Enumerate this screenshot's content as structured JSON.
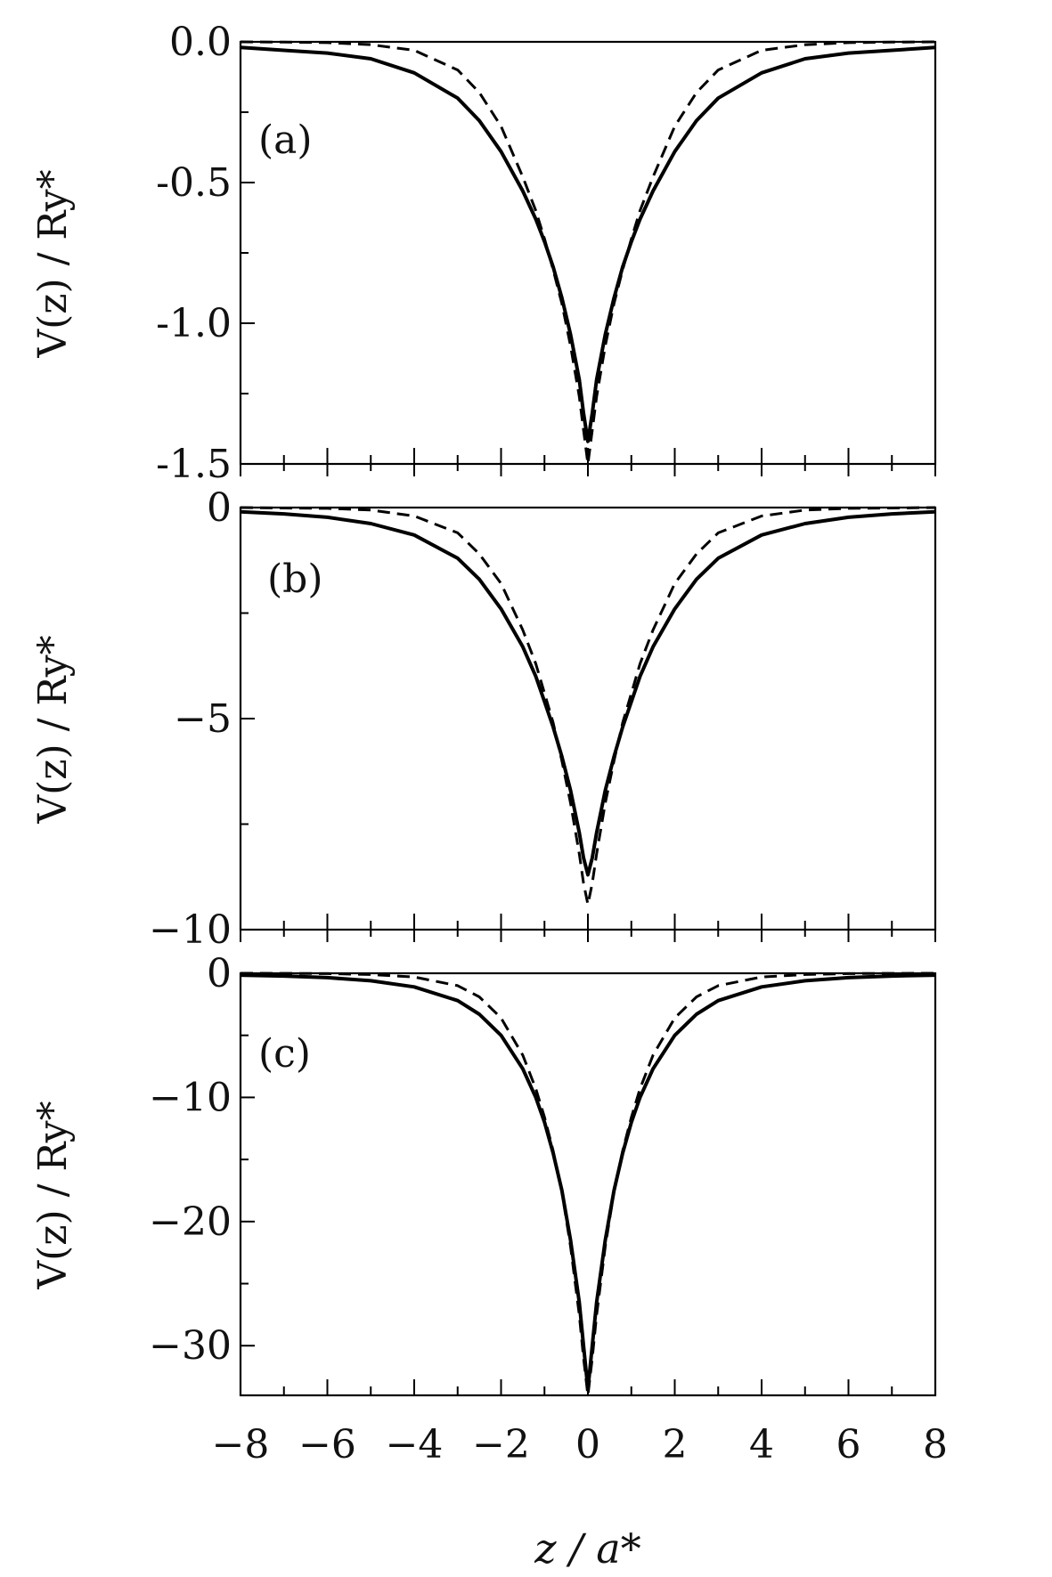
{
  "chart_data": [
    {
      "type": "line",
      "panel_label": "(a)",
      "ylabel": "V(z) / Ry*",
      "xlim": [
        -8,
        8
      ],
      "ylim": [
        -1.5,
        0.0
      ],
      "yticks": [
        0.0,
        -0.5,
        -1.0,
        -1.5
      ],
      "ytick_labels": [
        "0.0",
        "-0.5",
        "-1.0",
        "-1.5"
      ],
      "yminor": [
        -0.25,
        -0.75,
        -1.25
      ],
      "series": [
        {
          "style": "solid",
          "x": [
            -8,
            -7,
            -6,
            -5,
            -4,
            -3,
            -2.5,
            -2,
            -1.5,
            -1.2,
            -1,
            -0.8,
            -0.6,
            -0.4,
            -0.2,
            -0.1,
            0,
            0.1,
            0.2,
            0.4,
            0.6,
            0.8,
            1,
            1.2,
            1.5,
            2,
            2.5,
            3,
            4,
            5,
            6,
            7,
            8
          ],
          "y": [
            -0.02,
            -0.03,
            -0.04,
            -0.06,
            -0.11,
            -0.2,
            -0.28,
            -0.39,
            -0.53,
            -0.63,
            -0.71,
            -0.8,
            -0.91,
            -1.04,
            -1.2,
            -1.32,
            -1.42,
            -1.32,
            -1.2,
            -1.04,
            -0.91,
            -0.8,
            -0.71,
            -0.63,
            -0.53,
            -0.39,
            -0.28,
            -0.2,
            -0.11,
            -0.06,
            -0.04,
            -0.03,
            -0.02
          ]
        },
        {
          "style": "dashed",
          "x": [
            -8,
            -7,
            -6,
            -5,
            -4,
            -3,
            -2.5,
            -2,
            -1.5,
            -1.2,
            -1,
            -0.8,
            -0.6,
            -0.4,
            -0.2,
            -0.1,
            0,
            0.1,
            0.2,
            0.4,
            0.6,
            0.8,
            1,
            1.2,
            1.5,
            2,
            2.5,
            3,
            4,
            5,
            6,
            7,
            8
          ],
          "y": [
            0.0,
            -0.001,
            -0.003,
            -0.01,
            -0.03,
            -0.1,
            -0.18,
            -0.3,
            -0.48,
            -0.6,
            -0.7,
            -0.81,
            -0.93,
            -1.08,
            -1.26,
            -1.38,
            -1.5,
            -1.38,
            -1.26,
            -1.08,
            -0.93,
            -0.81,
            -0.7,
            -0.6,
            -0.48,
            -0.3,
            -0.18,
            -0.1,
            -0.03,
            -0.01,
            -0.003,
            -0.001,
            0.0
          ]
        }
      ]
    },
    {
      "type": "line",
      "panel_label": "(b)",
      "ylabel": "V(z) / Ry*",
      "xlim": [
        -8,
        8
      ],
      "ylim": [
        -10,
        0
      ],
      "yticks": [
        0,
        -5,
        -10
      ],
      "ytick_labels": [
        "0",
        "−5",
        "−10"
      ],
      "yminor": [
        -2.5,
        -7.5
      ],
      "series": [
        {
          "style": "solid",
          "x": [
            -8,
            -7,
            -6,
            -5,
            -4,
            -3,
            -2.5,
            -2,
            -1.5,
            -1.2,
            -1,
            -0.8,
            -0.6,
            -0.4,
            -0.2,
            -0.1,
            0,
            0.1,
            0.2,
            0.4,
            0.6,
            0.8,
            1,
            1.2,
            1.5,
            2,
            2.5,
            3,
            4,
            5,
            6,
            7,
            8
          ],
          "y": [
            -0.1,
            -0.15,
            -0.23,
            -0.38,
            -0.65,
            -1.2,
            -1.7,
            -2.4,
            -3.3,
            -4.0,
            -4.6,
            -5.2,
            -5.9,
            -6.7,
            -7.7,
            -8.3,
            -8.7,
            -8.3,
            -7.7,
            -6.7,
            -5.9,
            -5.2,
            -4.6,
            -4.0,
            -3.3,
            -2.4,
            -1.7,
            -1.2,
            -0.65,
            -0.38,
            -0.23,
            -0.15,
            -0.1
          ]
        },
        {
          "style": "dashed",
          "x": [
            -8,
            -7,
            -6,
            -5,
            -4,
            -3,
            -2.5,
            -2,
            -1.5,
            -1.2,
            -1,
            -0.8,
            -0.6,
            -0.4,
            -0.2,
            -0.1,
            0,
            0.1,
            0.2,
            0.4,
            0.6,
            0.8,
            1,
            1.2,
            1.5,
            2,
            2.5,
            3,
            4,
            5,
            6,
            7,
            8
          ],
          "y": [
            0.0,
            -0.01,
            -0.02,
            -0.06,
            -0.2,
            -0.6,
            -1.1,
            -1.8,
            -2.9,
            -3.7,
            -4.4,
            -5.1,
            -6.0,
            -7.0,
            -8.2,
            -8.9,
            -9.4,
            -8.9,
            -8.2,
            -7.0,
            -6.0,
            -5.1,
            -4.4,
            -3.7,
            -2.9,
            -1.8,
            -1.1,
            -0.6,
            -0.2,
            -0.06,
            -0.02,
            -0.01,
            0.0
          ]
        }
      ]
    },
    {
      "type": "line",
      "panel_label": "(c)",
      "ylabel": "V(z) / Ry*",
      "xlim": [
        -8,
        8
      ],
      "ylim": [
        -34,
        0
      ],
      "yticks": [
        0,
        -10,
        -20,
        -30
      ],
      "ytick_labels": [
        "0",
        "−10",
        "−20",
        "−30"
      ],
      "yminor": [
        -5,
        -15,
        -25
      ],
      "xticks": [
        -8,
        -6,
        -4,
        -2,
        0,
        2,
        4,
        6,
        8
      ],
      "xtick_labels": [
        "−8",
        "−6",
        "−4",
        "−2",
        "0",
        "2",
        "4",
        "6",
        "8"
      ],
      "xminor": [
        -7,
        -5,
        -3,
        -1,
        1,
        3,
        5,
        7
      ],
      "xlabel": "z / a*",
      "series": [
        {
          "style": "solid",
          "x": [
            -8,
            -7,
            -6,
            -5,
            -4,
            -3,
            -2.5,
            -2,
            -1.5,
            -1.2,
            -1,
            -0.8,
            -0.6,
            -0.4,
            -0.2,
            -0.1,
            0,
            0.1,
            0.2,
            0.4,
            0.6,
            0.8,
            1,
            1.2,
            1.5,
            2,
            2.5,
            3,
            4,
            5,
            6,
            7,
            8
          ],
          "y": [
            -0.15,
            -0.22,
            -0.35,
            -0.6,
            -1.1,
            -2.2,
            -3.3,
            -5.0,
            -7.7,
            -10.0,
            -12.0,
            -14.5,
            -17.5,
            -21.5,
            -26.5,
            -30.0,
            -33.5,
            -30.0,
            -26.5,
            -21.5,
            -17.5,
            -14.5,
            -12.0,
            -10.0,
            -7.7,
            -5.0,
            -3.3,
            -2.2,
            -1.1,
            -0.6,
            -0.35,
            -0.22,
            -0.15
          ]
        },
        {
          "style": "dashed",
          "x": [
            -8,
            -7,
            -6,
            -5,
            -4,
            -3,
            -2.5,
            -2,
            -1.5,
            -1.2,
            -1,
            -0.8,
            -0.6,
            -0.4,
            -0.2,
            -0.1,
            0,
            0.1,
            0.2,
            0.4,
            0.6,
            0.8,
            1,
            1.2,
            1.5,
            2,
            2.5,
            3,
            4,
            5,
            6,
            7,
            8
          ],
          "y": [
            0.0,
            -0.01,
            -0.03,
            -0.1,
            -0.3,
            -1.0,
            -1.9,
            -3.6,
            -6.6,
            -9.3,
            -11.6,
            -14.3,
            -17.6,
            -22.0,
            -27.5,
            -31.0,
            -34.0,
            -31.0,
            -27.5,
            -22.0,
            -17.6,
            -14.3,
            -11.6,
            -9.3,
            -6.6,
            -3.6,
            -1.9,
            -1.0,
            -0.3,
            -0.1,
            -0.03,
            -0.01,
            0.0
          ]
        }
      ]
    }
  ]
}
